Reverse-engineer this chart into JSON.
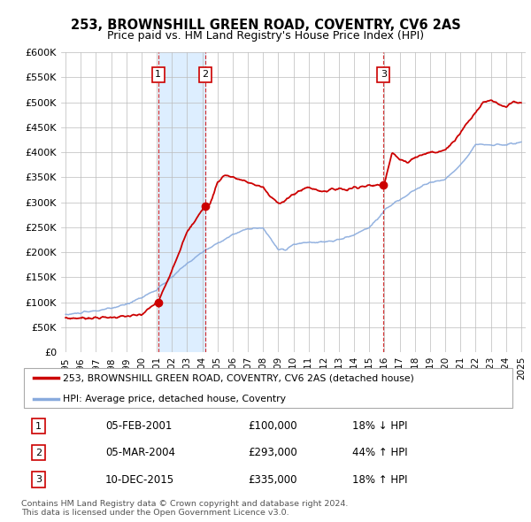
{
  "title": "253, BROWNSHILL GREEN ROAD, COVENTRY, CV6 2AS",
  "subtitle": "Price paid vs. HM Land Registry's House Price Index (HPI)",
  "ylim": [
    0,
    600000
  ],
  "yticks": [
    0,
    50000,
    100000,
    150000,
    200000,
    250000,
    300000,
    350000,
    400000,
    450000,
    500000,
    550000,
    600000
  ],
  "ytick_labels": [
    "£0",
    "£50K",
    "£100K",
    "£150K",
    "£200K",
    "£250K",
    "£300K",
    "£350K",
    "£400K",
    "£450K",
    "£500K",
    "£550K",
    "£600K"
  ],
  "xlim_start": 1994.7,
  "xlim_end": 2025.3,
  "transactions": [
    {
      "num": 1,
      "date": "05-FEB-2001",
      "price": 100000,
      "hpi_diff": "18% ↓ HPI",
      "x_year": 2001.1,
      "y_price": 100000
    },
    {
      "num": 2,
      "date": "05-MAR-2004",
      "price": 293000,
      "hpi_diff": "44% ↑ HPI",
      "x_year": 2004.18,
      "y_price": 293000
    },
    {
      "num": 3,
      "date": "10-DEC-2015",
      "price": 335000,
      "hpi_diff": "18% ↑ HPI",
      "x_year": 2015.93,
      "y_price": 335000
    }
  ],
  "legend_label_red": "253, BROWNSHILL GREEN ROAD, COVENTRY, CV6 2AS (detached house)",
  "legend_label_blue": "HPI: Average price, detached house, Coventry",
  "footnote1": "Contains HM Land Registry data © Crown copyright and database right 2024.",
  "footnote2": "This data is licensed under the Open Government Licence v3.0.",
  "red_color": "#cc0000",
  "blue_color": "#88aadd",
  "shaded_color": "#ddeeff",
  "background_color": "#ffffff",
  "grid_color": "#bbbbbb"
}
